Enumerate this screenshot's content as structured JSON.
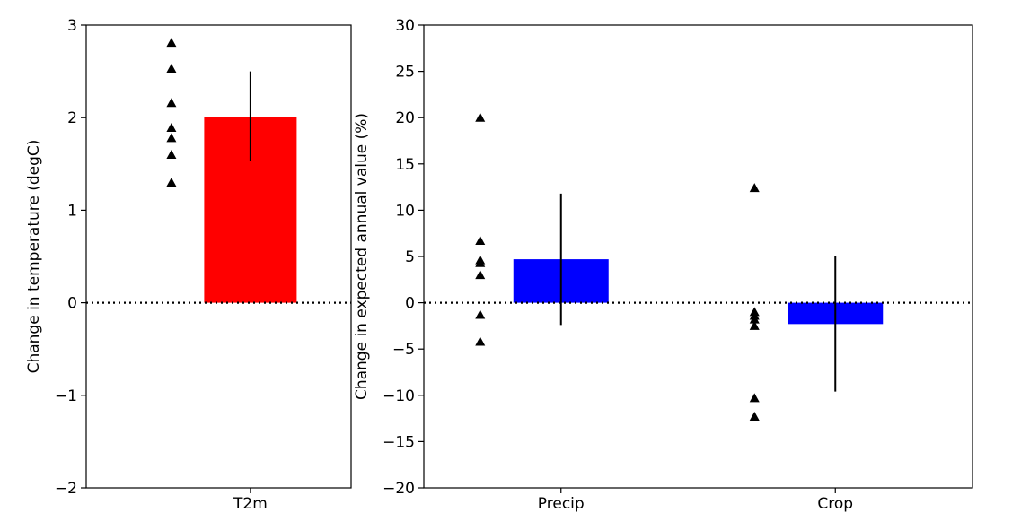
{
  "chart_data": [
    {
      "type": "bar",
      "categories": [
        "T2m"
      ],
      "values": [
        2.01
      ],
      "error": [
        [
          1.53,
          2.5
        ]
      ],
      "points": [
        [
          1.3,
          1.6,
          1.78,
          1.89,
          2.16,
          2.53,
          2.81
        ]
      ],
      "ylabel": "Change in temperature (degC)",
      "ylim": [
        -2,
        3
      ],
      "yticks": [
        3,
        2,
        1,
        0,
        -1,
        -2
      ],
      "ytick_labels": [
        "3",
        "2",
        "1",
        "0",
        "−1",
        "−2"
      ],
      "bar_color": "#ff0000",
      "zero_line": true,
      "grid": false
    },
    {
      "type": "bar",
      "categories": [
        "Precip",
        "Crop"
      ],
      "values": [
        4.7,
        -2.3
      ],
      "error": [
        [
          -2.4,
          11.8
        ],
        [
          -9.6,
          5.1
        ]
      ],
      "points": [
        [
          20.0,
          6.7,
          4.6,
          4.3,
          3.0,
          -1.3,
          -4.2
        ],
        [
          12.4,
          -1.0,
          -1.4,
          -1.8,
          -2.5,
          -10.3,
          -12.3
        ]
      ],
      "ylabel": "Change in expected annual value (%)",
      "ylim": [
        -20,
        30
      ],
      "yticks": [
        30,
        25,
        20,
        15,
        10,
        5,
        0,
        -5,
        -10,
        -15,
        -20
      ],
      "ytick_labels": [
        "30",
        "25",
        "20",
        "15",
        "10",
        "5",
        "0",
        "−5",
        "−10",
        "−15",
        "−20"
      ],
      "bar_color": "#0000ff",
      "zero_line": true,
      "grid": false
    }
  ]
}
